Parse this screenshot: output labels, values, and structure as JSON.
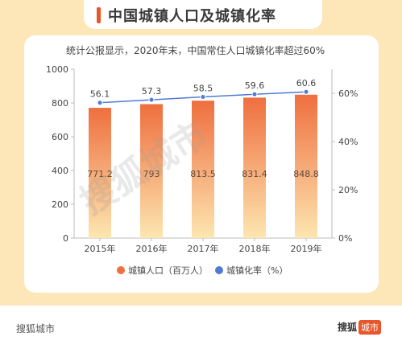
{
  "title": "中国城镇人口及城镇化率",
  "subtitle": "统计公报显示，2020年末，中国常住人口城镇化率超过60%",
  "watermark": "搜狐城市",
  "footer": {
    "left_brand": "搜狐城市",
    "right_brand_text": "搜狐",
    "right_brand_badge": "城市"
  },
  "colors": {
    "bar_top": "#ef6f3f",
    "bar_bottom": "#fde6b0",
    "line": "#4f7ad6",
    "accent": "#e8562a"
  },
  "chart_data": {
    "type": "bar",
    "categories": [
      "2015年",
      "2016年",
      "2017年",
      "2018年",
      "2019年"
    ],
    "series": [
      {
        "name": "城镇人口（百万人）",
        "type": "bar",
        "axis": "left",
        "values": [
          771.2,
          793,
          813.5,
          831.4,
          848.8
        ]
      },
      {
        "name": "城镇化率（%）",
        "type": "line",
        "axis": "right",
        "values": [
          56.1,
          57.3,
          58.5,
          59.6,
          60.6
        ]
      }
    ],
    "ylim": [
      0,
      1000
    ],
    "y_ticks": [
      "0",
      "200",
      "400",
      "600",
      "800",
      "1000"
    ],
    "y2lim": [
      0,
      70
    ],
    "y2_ticks": [
      "0%",
      "20%",
      "40%",
      "60%"
    ],
    "legend_position": "bottom",
    "grid": false
  }
}
